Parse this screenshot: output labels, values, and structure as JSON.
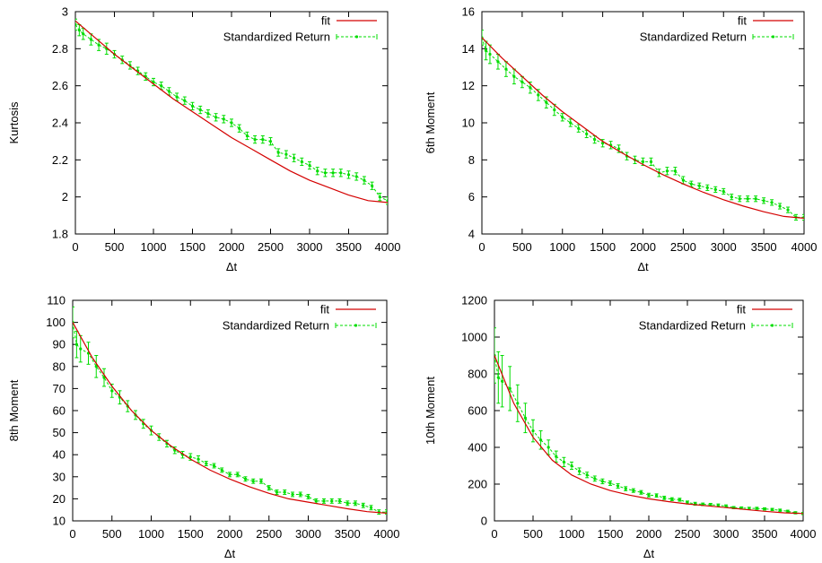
{
  "chart_data": [
    {
      "type": "line",
      "xlabel": "Δt",
      "ylabel": "Kurtosis",
      "xlim": [
        0,
        4000
      ],
      "ylim": [
        1.8,
        3
      ],
      "xticks": [
        0,
        500,
        1000,
        1500,
        2000,
        2500,
        3000,
        3500,
        4000
      ],
      "yticks": [
        1.8,
        2,
        2.2,
        2.4,
        2.6,
        2.8,
        3
      ],
      "ytick_labels": [
        "1.8",
        "2",
        "2.2",
        "2.4",
        "2.6",
        "2.8",
        "3"
      ],
      "legend_position": "top-right",
      "series": [
        {
          "name": "fit",
          "color": "#d40000",
          "style": "solid",
          "x": [
            0,
            250,
            500,
            750,
            1000,
            1250,
            1500,
            1750,
            2000,
            2250,
            2500,
            2750,
            3000,
            3250,
            3500,
            3750,
            4000
          ],
          "y": [
            2.95,
            2.86,
            2.77,
            2.69,
            2.61,
            2.53,
            2.46,
            2.39,
            2.32,
            2.26,
            2.2,
            2.14,
            2.09,
            2.05,
            2.01,
            1.98,
            1.97
          ]
        },
        {
          "name": "Standardized Return",
          "color": "#00dd00",
          "style": "dashed-errorbars",
          "x": [
            0,
            50,
            100,
            200,
            300,
            400,
            500,
            600,
            700,
            800,
            900,
            1000,
            1100,
            1200,
            1300,
            1400,
            1500,
            1600,
            1700,
            1800,
            1900,
            2000,
            2100,
            2200,
            2300,
            2400,
            2500,
            2600,
            2700,
            2800,
            2900,
            3000,
            3100,
            3200,
            3300,
            3400,
            3500,
            3600,
            3700,
            3800,
            3900,
            4000
          ],
          "y": [
            2.93,
            2.9,
            2.88,
            2.85,
            2.82,
            2.8,
            2.77,
            2.74,
            2.71,
            2.68,
            2.65,
            2.62,
            2.6,
            2.57,
            2.54,
            2.52,
            2.49,
            2.47,
            2.45,
            2.43,
            2.42,
            2.4,
            2.37,
            2.33,
            2.31,
            2.31,
            2.3,
            2.24,
            2.23,
            2.21,
            2.19,
            2.17,
            2.14,
            2.13,
            2.13,
            2.13,
            2.12,
            2.11,
            2.09,
            2.06,
            2.0,
            1.98
          ],
          "err": [
            0.03,
            0.03,
            0.03,
            0.03,
            0.03,
            0.03,
            0.02,
            0.02,
            0.02,
            0.02,
            0.02,
            0.02,
            0.02,
            0.02,
            0.02,
            0.02,
            0.02,
            0.02,
            0.02,
            0.02,
            0.02,
            0.02,
            0.02,
            0.02,
            0.02,
            0.02,
            0.02,
            0.02,
            0.02,
            0.02,
            0.02,
            0.02,
            0.02,
            0.02,
            0.02,
            0.02,
            0.02,
            0.02,
            0.02,
            0.02,
            0.02,
            0.02
          ]
        }
      ]
    },
    {
      "type": "line",
      "xlabel": "Δt",
      "ylabel": "6th Moment",
      "xlim": [
        0,
        4000
      ],
      "ylim": [
        4,
        16
      ],
      "xticks": [
        0,
        500,
        1000,
        1500,
        2000,
        2500,
        3000,
        3500,
        4000
      ],
      "yticks": [
        4,
        6,
        8,
        10,
        12,
        14,
        16
      ],
      "ytick_labels": [
        "4",
        "6",
        "8",
        "10",
        "12",
        "14",
        "16"
      ],
      "legend_position": "top-right",
      "series": [
        {
          "name": "fit",
          "color": "#d40000",
          "style": "solid",
          "x": [
            0,
            250,
            500,
            750,
            1000,
            1250,
            1500,
            1750,
            2000,
            2250,
            2500,
            2750,
            3000,
            3250,
            3500,
            3750,
            4000
          ],
          "y": [
            14.6,
            13.5,
            12.5,
            11.5,
            10.6,
            9.8,
            9.0,
            8.35,
            7.75,
            7.2,
            6.7,
            6.25,
            5.85,
            5.5,
            5.2,
            4.95,
            4.85
          ]
        },
        {
          "name": "Standardized Return",
          "color": "#00dd00",
          "style": "dashed-errorbars",
          "x": [
            0,
            50,
            100,
            200,
            300,
            400,
            500,
            600,
            700,
            800,
            900,
            1000,
            1100,
            1200,
            1300,
            1400,
            1500,
            1600,
            1700,
            1800,
            1900,
            2000,
            2100,
            2200,
            2300,
            2400,
            2500,
            2600,
            2700,
            2800,
            2900,
            3000,
            3100,
            3200,
            3300,
            3400,
            3500,
            3600,
            3700,
            3800,
            3900,
            4000
          ],
          "y": [
            14.6,
            13.9,
            13.7,
            13.3,
            12.9,
            12.5,
            12.2,
            11.9,
            11.5,
            11.1,
            10.7,
            10.3,
            10.0,
            9.7,
            9.4,
            9.1,
            8.9,
            8.8,
            8.6,
            8.2,
            8.0,
            7.9,
            7.9,
            7.3,
            7.4,
            7.4,
            6.9,
            6.7,
            6.6,
            6.5,
            6.4,
            6.3,
            6.0,
            5.9,
            5.9,
            5.9,
            5.8,
            5.7,
            5.5,
            5.3,
            4.9,
            4.9
          ],
          "err": [
            0.4,
            0.5,
            0.5,
            0.4,
            0.4,
            0.4,
            0.3,
            0.3,
            0.3,
            0.3,
            0.3,
            0.2,
            0.2,
            0.2,
            0.2,
            0.2,
            0.2,
            0.2,
            0.2,
            0.2,
            0.2,
            0.2,
            0.2,
            0.2,
            0.2,
            0.2,
            0.2,
            0.15,
            0.15,
            0.15,
            0.15,
            0.15,
            0.15,
            0.15,
            0.15,
            0.15,
            0.15,
            0.15,
            0.15,
            0.15,
            0.15,
            0.15
          ]
        }
      ]
    },
    {
      "type": "line",
      "xlabel": "Δt",
      "ylabel": "8th Moment",
      "xlim": [
        0,
        4000
      ],
      "ylim": [
        10,
        110
      ],
      "xticks": [
        0,
        500,
        1000,
        1500,
        2000,
        2500,
        3000,
        3500,
        4000
      ],
      "yticks": [
        10,
        20,
        30,
        40,
        50,
        60,
        70,
        80,
        90,
        100,
        110
      ],
      "ytick_labels": [
        "10",
        "20",
        "30",
        "40",
        "50",
        "60",
        "70",
        "80",
        "90",
        "100",
        "110"
      ],
      "legend_position": "top-right",
      "series": [
        {
          "name": "fit",
          "color": "#d40000",
          "style": "solid",
          "x": [
            0,
            250,
            500,
            750,
            1000,
            1250,
            1500,
            1750,
            2000,
            2250,
            2500,
            2750,
            3000,
            3250,
            3500,
            3750,
            4000
          ],
          "y": [
            100,
            84,
            71,
            60,
            51,
            44,
            38,
            33,
            29,
            25.5,
            22.5,
            20,
            18.5,
            17,
            15.5,
            14.2,
            13.5
          ]
        },
        {
          "name": "Standardized Return",
          "color": "#00dd00",
          "style": "dashed-errorbars",
          "x": [
            0,
            50,
            100,
            200,
            300,
            400,
            500,
            600,
            700,
            800,
            900,
            1000,
            1100,
            1200,
            1300,
            1400,
            1500,
            1600,
            1700,
            1800,
            1900,
            2000,
            2100,
            2200,
            2300,
            2400,
            2500,
            2600,
            2700,
            2800,
            2900,
            3000,
            3100,
            3200,
            3300,
            3400,
            3500,
            3600,
            3700,
            3800,
            3900,
            4000
          ],
          "y": [
            100,
            90,
            88,
            86,
            80,
            75,
            69,
            66,
            62,
            58,
            54,
            51,
            48,
            45,
            42,
            40,
            39,
            38,
            36,
            35,
            33,
            31,
            31,
            29,
            28,
            28,
            25,
            23,
            23,
            22,
            22,
            21,
            19,
            19,
            19,
            19,
            18,
            18,
            17,
            16,
            14,
            14
          ],
          "err": [
            7,
            6,
            6,
            5,
            5,
            4,
            3,
            3,
            2.5,
            2,
            2,
            2,
            1.5,
            1.5,
            1.5,
            1.5,
            1.5,
            1.5,
            1,
            1,
            1,
            1,
            1,
            1,
            1,
            1,
            1,
            1,
            1,
            1,
            1,
            1,
            1,
            1,
            1,
            1,
            1,
            1,
            1,
            1,
            1,
            1
          ]
        }
      ]
    },
    {
      "type": "line",
      "xlabel": "Δt",
      "ylabel": "10th Moment",
      "xlim": [
        0,
        4000
      ],
      "ylim": [
        0,
        1200
      ],
      "xticks": [
        0,
        500,
        1000,
        1500,
        2000,
        2500,
        3000,
        3500,
        4000
      ],
      "yticks": [
        0,
        200,
        400,
        600,
        800,
        1000,
        1200
      ],
      "ytick_labels": [
        "0",
        "200",
        "400",
        "600",
        "800",
        "1000",
        "1200"
      ],
      "legend_position": "top-right",
      "series": [
        {
          "name": "fit",
          "color": "#d40000",
          "style": "solid",
          "x": [
            0,
            250,
            500,
            750,
            1000,
            1250,
            1500,
            1750,
            2000,
            2250,
            2500,
            2750,
            3000,
            3250,
            3500,
            3750,
            4000
          ],
          "y": [
            900,
            640,
            455,
            330,
            250,
            200,
            165,
            140,
            120,
            105,
            92,
            82,
            72,
            62,
            52,
            44,
            40
          ]
        },
        {
          "name": "Standardized Return",
          "color": "#00dd00",
          "style": "dashed-errorbars",
          "x": [
            0,
            50,
            100,
            200,
            300,
            400,
            500,
            600,
            700,
            800,
            900,
            1000,
            1100,
            1200,
            1300,
            1400,
            1500,
            1600,
            1700,
            1800,
            1900,
            2000,
            2100,
            2200,
            2300,
            2400,
            2500,
            2600,
            2700,
            2800,
            2900,
            3000,
            3100,
            3200,
            3300,
            3400,
            3500,
            3600,
            3700,
            3800,
            3900,
            4000
          ],
          "y": [
            900,
            780,
            760,
            720,
            640,
            560,
            490,
            440,
            400,
            350,
            320,
            300,
            270,
            250,
            230,
            215,
            205,
            190,
            175,
            165,
            155,
            140,
            138,
            125,
            118,
            115,
            100,
            93,
            90,
            88,
            85,
            80,
            72,
            70,
            68,
            68,
            65,
            62,
            58,
            52,
            44,
            40
          ],
          "err": [
            150,
            140,
            140,
            120,
            100,
            80,
            60,
            50,
            40,
            30,
            25,
            20,
            18,
            15,
            14,
            13,
            12,
            12,
            11,
            10,
            10,
            10,
            9,
            9,
            8,
            8,
            8,
            8,
            7,
            7,
            7,
            7,
            6,
            6,
            6,
            6,
            6,
            6,
            6,
            6,
            6,
            6
          ]
        }
      ]
    }
  ]
}
